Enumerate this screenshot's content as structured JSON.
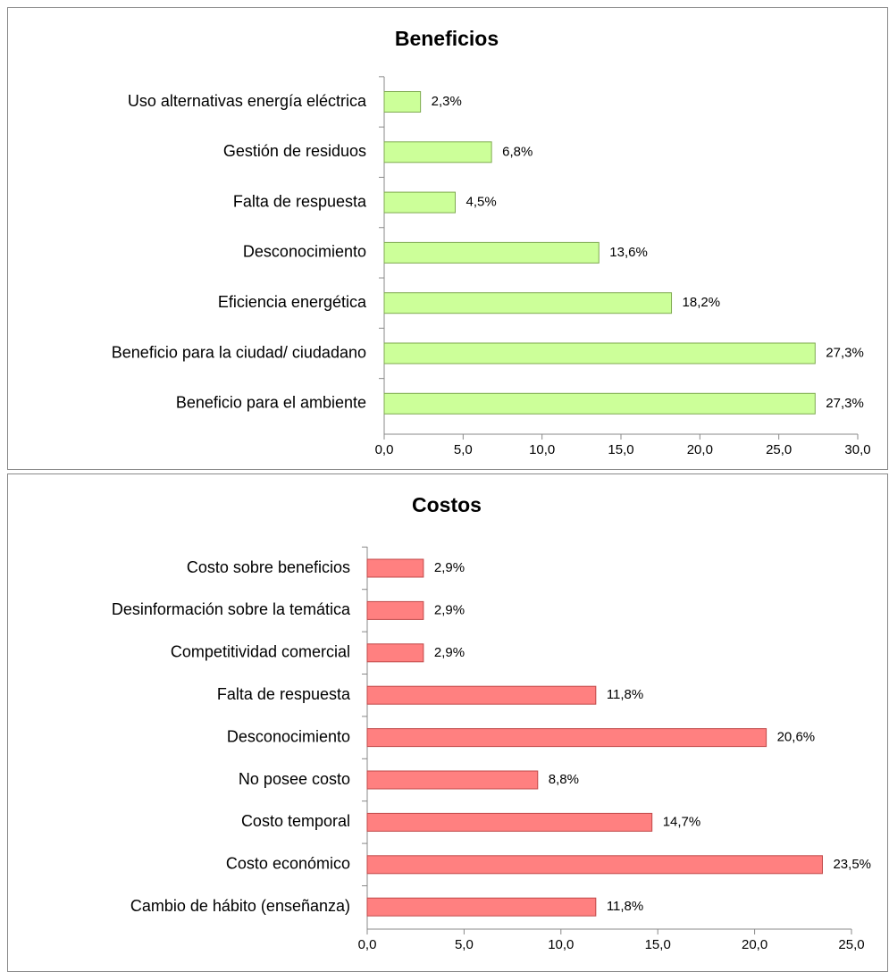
{
  "chart_data": [
    {
      "type": "barh",
      "title": "Beneficios",
      "categories": [
        "Uso alternativas energía eléctrica",
        "Gestión de residuos",
        "Falta de respuesta",
        "Desconocimiento",
        "Eficiencia energética ",
        "Beneficio para la ciudad/ ciudadano",
        "Beneficio para el ambiente"
      ],
      "values": [
        2.3,
        6.8,
        4.5,
        13.6,
        18.2,
        27.3,
        27.3
      ],
      "value_labels": [
        "2,3%",
        "6,8%",
        "4,5%",
        "13,6%",
        "18,2%",
        "27,3%",
        "27,3%"
      ],
      "color": "#ccff99",
      "edge_color": "#7faa50",
      "xlim": [
        0,
        30
      ],
      "xticks": [
        {
          "value": 0,
          "label": "0,0"
        },
        {
          "value": 5,
          "label": "5,0"
        },
        {
          "value": 10,
          "label": "10,0"
        },
        {
          "value": 15,
          "label": "15,0"
        },
        {
          "value": 20,
          "label": "20,0"
        },
        {
          "value": 25,
          "label": "25,0"
        },
        {
          "value": 30,
          "label": "30,0"
        }
      ]
    },
    {
      "type": "barh",
      "title": "Costos",
      "categories": [
        "Costo sobre beneficios",
        "Desinformación sobre la temática",
        "Competitividad comercial",
        "Falta de respuesta ",
        "Desconocimiento",
        "No posee costo",
        "Costo temporal",
        "Costo económico",
        "Cambio de hábito (enseñanza)"
      ],
      "values": [
        2.9,
        2.9,
        2.9,
        11.8,
        20.6,
        8.8,
        14.7,
        23.5,
        11.8
      ],
      "value_labels": [
        "2,9%",
        "2,9%",
        "2,9%",
        "11,8%",
        "20,6%",
        "8,8%",
        "14,7%",
        "23,5%",
        "11,8%"
      ],
      "color": "#ff8080",
      "edge_color": "#c04848",
      "xlim": [
        0,
        25
      ],
      "xticks": [
        {
          "value": 0,
          "label": "0,0"
        },
        {
          "value": 5,
          "label": "5,0"
        },
        {
          "value": 10,
          "label": "10,0"
        },
        {
          "value": 15,
          "label": "15,0"
        },
        {
          "value": 20,
          "label": "20,0"
        },
        {
          "value": 25,
          "label": "25,0"
        }
      ]
    }
  ]
}
